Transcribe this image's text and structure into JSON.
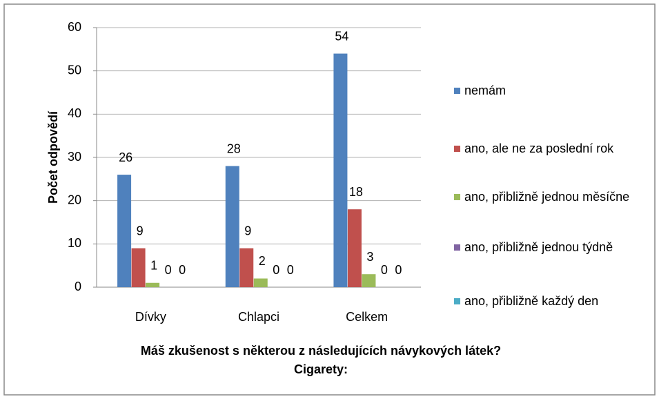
{
  "chart_data": {
    "type": "bar",
    "title": "Máš zkušenost s některou z následujících návykových látek?",
    "subtitle": "Cigarety:",
    "y_label": "Počet odpovědí",
    "categories": [
      "Dívky",
      "Chlapci",
      "Celkem"
    ],
    "series": [
      {
        "name": "nemám",
        "color": "#4f81bd",
        "values": [
          26,
          28,
          54
        ]
      },
      {
        "name": "ano, ale ne za poslední rok",
        "color": "#c0504d",
        "values": [
          9,
          9,
          18
        ]
      },
      {
        "name": "ano, přibližně jednou měsíčne",
        "color": "#9bbb59",
        "values": [
          1,
          2,
          3
        ]
      },
      {
        "name": "ano, přibližně jednou týdně",
        "color": "#8064a2",
        "values": [
          0,
          0,
          0
        ]
      },
      {
        "name": "ano, přibližně každý den",
        "color": "#4bacc6",
        "values": [
          0,
          0,
          0
        ]
      }
    ],
    "ylim": [
      0,
      60
    ],
    "yticks": [
      0,
      10,
      20,
      30,
      40,
      50,
      60
    ],
    "grid": true,
    "legend": "right"
  }
}
